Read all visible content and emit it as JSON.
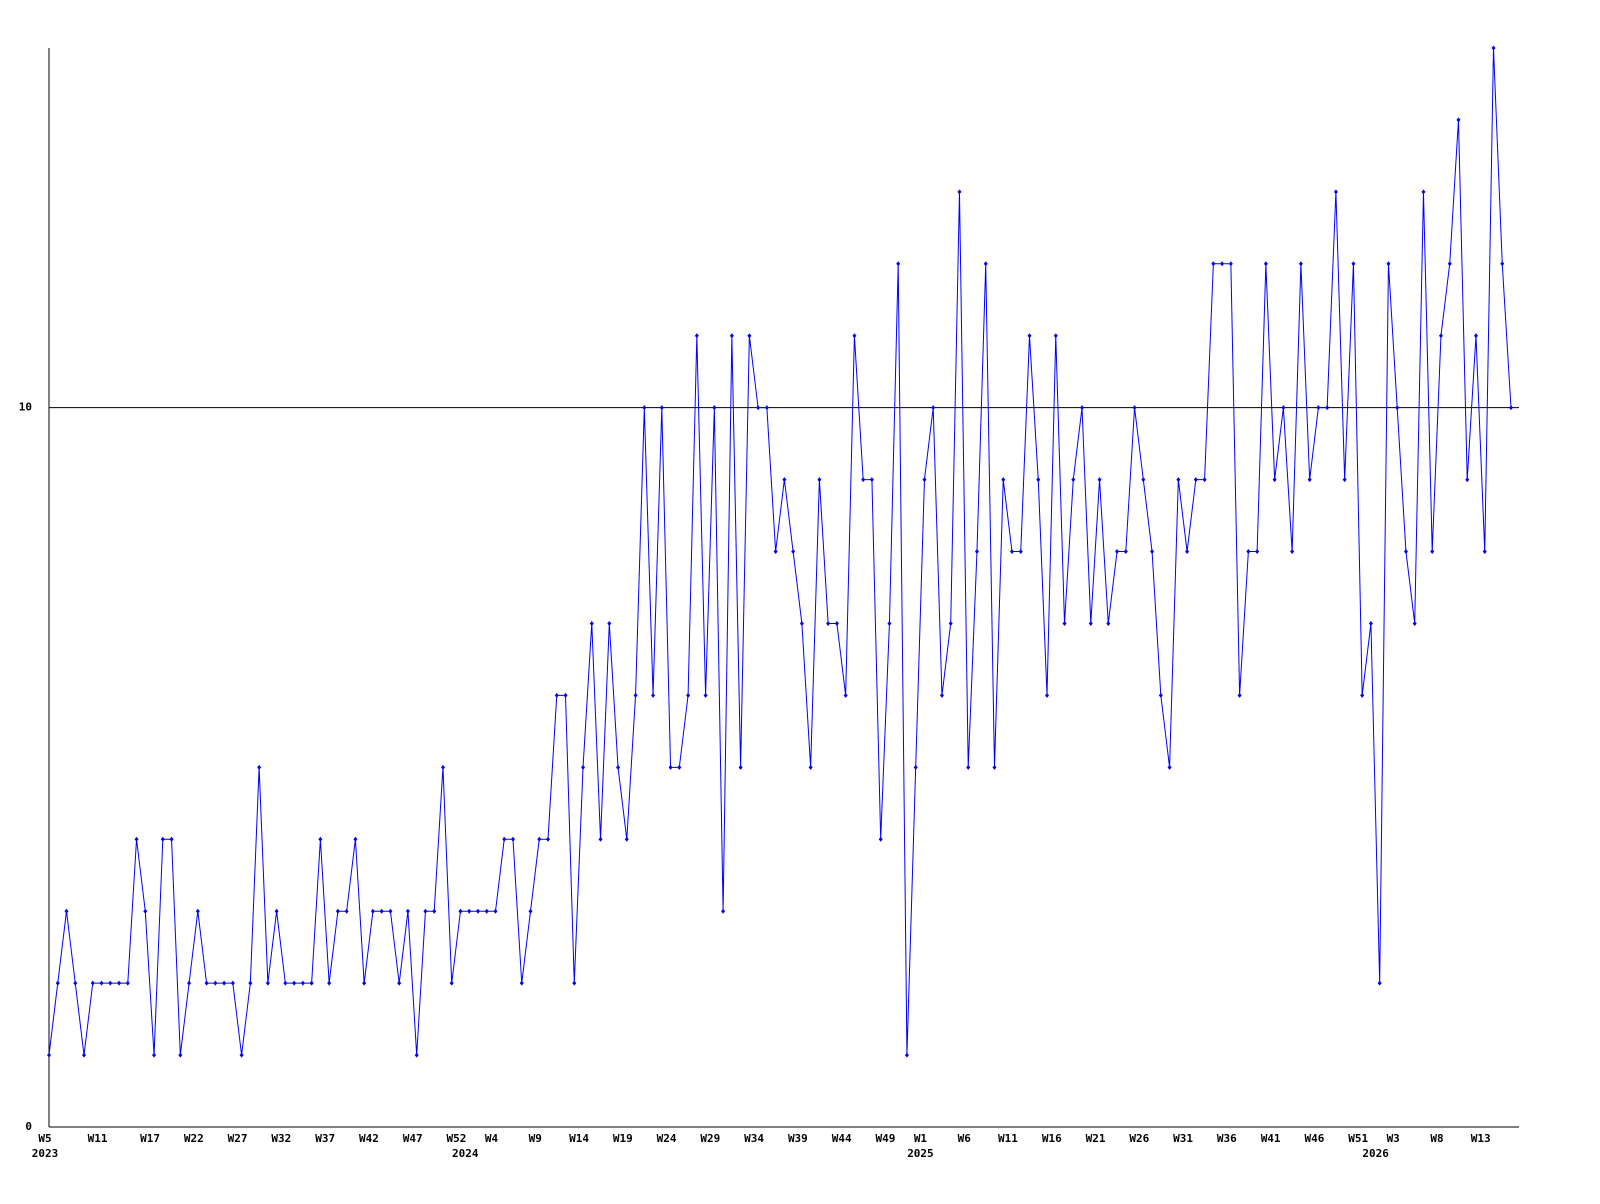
{
  "chart_data": {
    "type": "line",
    "categories": [
      "W5",
      null,
      null,
      null,
      null,
      null,
      "W11",
      null,
      null,
      null,
      null,
      null,
      "W17",
      null,
      null,
      null,
      null,
      "W22",
      null,
      null,
      null,
      null,
      "W27",
      null,
      null,
      null,
      null,
      "W32",
      null,
      null,
      null,
      null,
      "W37",
      null,
      null,
      null,
      null,
      "W42",
      null,
      null,
      null,
      null,
      "W47",
      null,
      null,
      null,
      null,
      "W52",
      null,
      null,
      null,
      "W4",
      null,
      null,
      null,
      null,
      "W9",
      null,
      null,
      null,
      null,
      "W14",
      null,
      null,
      null,
      null,
      "W19",
      null,
      null,
      null,
      null,
      "W24",
      null,
      null,
      null,
      null,
      "W29",
      null,
      null,
      null,
      null,
      "W34",
      null,
      null,
      null,
      null,
      "W39",
      null,
      null,
      null,
      null,
      "W44",
      null,
      null,
      null,
      null,
      "W49",
      null,
      null,
      null,
      "W1",
      null,
      null,
      null,
      null,
      "W6",
      null,
      null,
      null,
      null,
      "W11",
      null,
      null,
      null,
      null,
      "W16",
      null,
      null,
      null,
      null,
      "W21",
      null,
      null,
      null,
      null,
      "W26",
      null,
      null,
      null,
      null,
      "W31",
      null,
      null,
      null,
      null,
      "W36",
      null,
      null,
      null,
      null,
      "W41",
      null,
      null,
      null,
      null,
      "W46",
      null,
      null,
      null,
      null,
      "W51",
      null,
      null,
      null,
      "W3",
      null,
      null,
      null,
      null,
      "W8",
      null,
      null,
      null,
      null,
      "W13",
      null,
      null,
      null
    ],
    "years": [
      "2023",
      null,
      null,
      null,
      null,
      null,
      null,
      null,
      null,
      null,
      null,
      null,
      null,
      null,
      null,
      null,
      null,
      null,
      null,
      null,
      null,
      null,
      null,
      null,
      null,
      null,
      null,
      null,
      null,
      null,
      null,
      null,
      null,
      null,
      null,
      null,
      null,
      null,
      null,
      null,
      null,
      null,
      null,
      null,
      null,
      null,
      null,
      null,
      "2024",
      null,
      null,
      null,
      null,
      null,
      null,
      null,
      null,
      null,
      null,
      null,
      null,
      null,
      null,
      null,
      null,
      null,
      null,
      null,
      null,
      null,
      null,
      null,
      null,
      null,
      null,
      null,
      null,
      null,
      null,
      null,
      null,
      null,
      null,
      null,
      null,
      null,
      null,
      null,
      null,
      null,
      null,
      null,
      null,
      null,
      null,
      null,
      null,
      null,
      null,
      null,
      "2025",
      null,
      null,
      null,
      null,
      null,
      null,
      null,
      null,
      null,
      null,
      null,
      null,
      null,
      null,
      null,
      null,
      null,
      null,
      null,
      null,
      null,
      null,
      null,
      null,
      null,
      null,
      null,
      null,
      null,
      null,
      null,
      null,
      null,
      null,
      null,
      null,
      null,
      null,
      null,
      null,
      null,
      null,
      null,
      null,
      null,
      null,
      null,
      null,
      null,
      null,
      null,
      "2026",
      null,
      null,
      null,
      null,
      null,
      null,
      null,
      null,
      null,
      null,
      null,
      null,
      null,
      null,
      null
    ],
    "values": [
      1,
      2,
      3,
      2,
      1,
      2,
      2,
      2,
      2,
      2,
      4,
      3,
      1,
      4,
      4,
      1,
      2,
      3,
      2,
      2,
      2,
      2,
      1,
      2,
      5,
      2,
      3,
      2,
      2,
      2,
      2,
      4,
      2,
      3,
      3,
      4,
      2,
      3,
      3,
      3,
      2,
      3,
      1,
      3,
      3,
      5,
      2,
      3,
      3,
      3,
      3,
      3,
      4,
      4,
      2,
      3,
      4,
      4,
      6,
      6,
      2,
      5,
      7,
      4,
      7,
      5,
      4,
      6,
      10,
      6,
      10,
      5,
      5,
      6,
      11,
      6,
      10,
      3,
      11,
      5,
      11,
      10,
      10,
      8,
      9,
      8,
      7,
      5,
      9,
      7,
      7,
      6,
      11,
      9,
      9,
      4,
      7,
      12,
      1,
      5,
      9,
      10,
      6,
      7,
      13,
      5,
      8,
      12,
      5,
      9,
      8,
      8,
      11,
      9,
      6,
      11,
      7,
      9,
      10,
      7,
      9,
      7,
      8,
      8,
      10,
      9,
      8,
      6,
      5,
      9,
      8,
      9,
      9,
      12,
      12,
      12,
      6,
      8,
      8,
      12,
      9,
      10,
      8,
      12,
      9,
      10,
      10,
      13,
      9,
      12,
      6,
      7,
      2,
      12,
      10,
      8,
      7,
      13,
      8,
      11,
      12,
      14,
      9,
      11,
      8,
      15,
      12,
      10
    ],
    "color": "#0000ff",
    "ylim": [
      0,
      15
    ],
    "yticks": [
      0,
      10
    ],
    "grid": true
  }
}
